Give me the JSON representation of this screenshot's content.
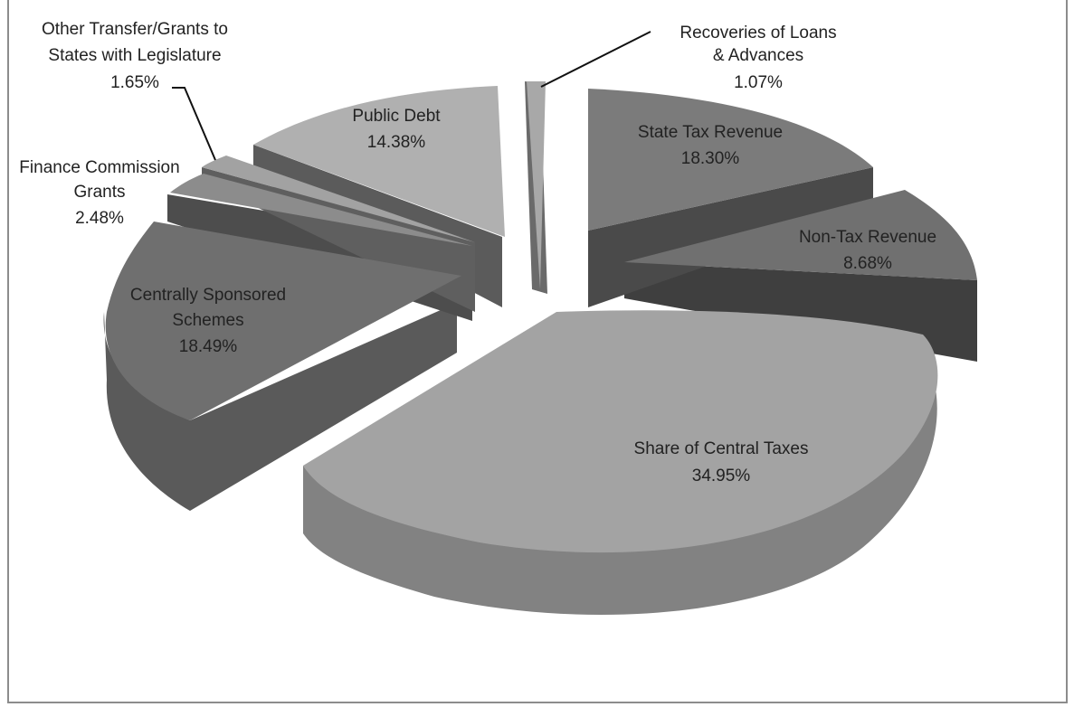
{
  "chart_data": {
    "type": "pie",
    "title": "",
    "slices": [
      {
        "label_lines": [
          "Recoveries of Loans",
          "& Advances"
        ],
        "percent_text": "1.07%",
        "value": 1.07
      },
      {
        "label_lines": [
          "State Tax Revenue"
        ],
        "percent_text": "18.30%",
        "value": 18.3
      },
      {
        "label_lines": [
          "Non-Tax Revenue"
        ],
        "percent_text": "8.68%",
        "value": 8.68
      },
      {
        "label_lines": [
          "Share of Central Taxes"
        ],
        "percent_text": "34.95%",
        "value": 34.95
      },
      {
        "label_lines": [
          "Centrally Sponsored",
          "Schemes"
        ],
        "percent_text": "18.49%",
        "value": 18.49
      },
      {
        "label_lines": [
          "Finance Commission",
          "Grants"
        ],
        "percent_text": "2.48%",
        "value": 2.48
      },
      {
        "label_lines": [
          "Other Transfer/Grants to",
          "States with Legislature"
        ],
        "percent_text": "1.65%",
        "value": 1.65
      },
      {
        "label_lines": [
          "Public Debt"
        ],
        "percent_text": "14.38%",
        "value": 14.38
      }
    ],
    "colors": {
      "Recoveries of Loans & Advances": "#a9a9a9",
      "State Tax Revenue": "#7a7a7a",
      "Non-Tax Revenue": "#6f6f6f",
      "Share of Central Taxes": "#a3a3a3",
      "Centrally Sponsored Schemes": "#6e6e6e",
      "Finance Commission Grants": "#8a8a8a",
      "Other Transfer/Grants to States with Legislature": "#a0a0a0",
      "Public Debt": "#b0b0b0"
    }
  }
}
